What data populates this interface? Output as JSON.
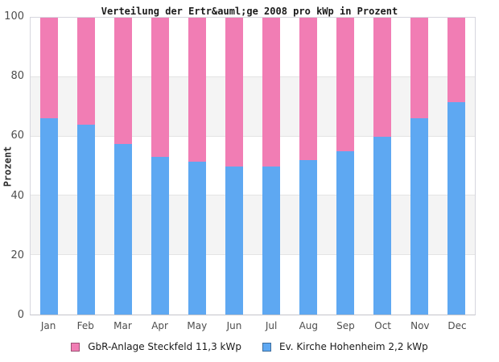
{
  "chart_data": {
    "type": "bar",
    "stacked": true,
    "title": "Verteilung der Ertr&auml;ge 2008 pro kWp in Prozent",
    "ylabel": "Prozent",
    "ylim": [
      0,
      100
    ],
    "yticks": [
      0,
      20,
      40,
      60,
      80,
      100
    ],
    "grid": true,
    "legend_position": "bottom",
    "band_colors": [
      "#ffffff",
      "#f4f4f4"
    ],
    "categories": [
      "Jan",
      "Feb",
      "Mar",
      "Apr",
      "May",
      "Jun",
      "Jul",
      "Aug",
      "Sep",
      "Oct",
      "Nov",
      "Dec"
    ],
    "series": [
      {
        "name": "GbR-Anlage Steckfeld 11,3 kWp",
        "color": "#f17db4",
        "values": [
          34,
          36,
          42.5,
          47,
          48.5,
          50,
          50,
          48,
          45,
          40,
          34,
          28.5
        ]
      },
      {
        "name": "Ev. Kirche Hohenheim 2,2 kWp",
        "color": "#5ea8f2",
        "values": [
          66,
          64,
          57.5,
          53,
          51.5,
          50,
          50,
          52,
          55,
          60,
          66,
          71.5
        ]
      }
    ]
  }
}
